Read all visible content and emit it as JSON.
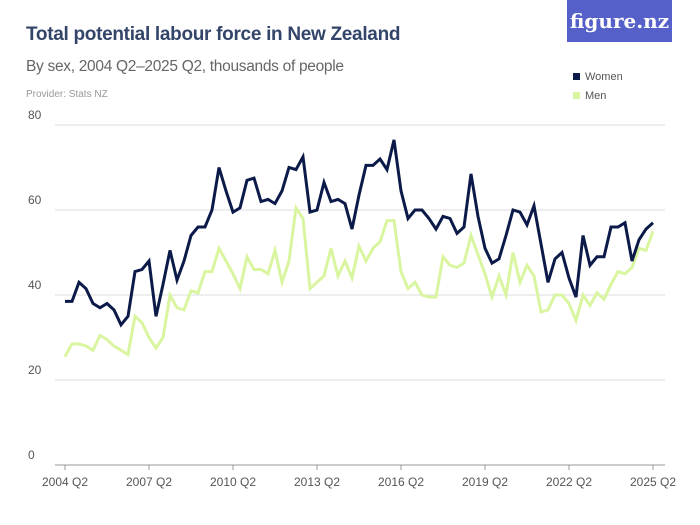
{
  "header": {
    "title": "Total potential labour force in New Zealand",
    "subtitle": "By sex, 2004 Q2–2025 Q2, thousands of people",
    "provider": "Provider: Stats NZ",
    "logo": "figure.nz"
  },
  "colors": {
    "women": "#0b1a48",
    "men": "#d9f5a0",
    "logo_bg": "#5561c8"
  },
  "chart_data": {
    "type": "line",
    "title": "Total potential labour force in New Zealand",
    "subtitle": "By sex, 2004 Q2–2025 Q2, thousands of people",
    "x_start": "2004 Q2",
    "x_end": "2025 Q2",
    "x_ticks": [
      "2004 Q2",
      "2007 Q2",
      "2010 Q2",
      "2013 Q2",
      "2016 Q2",
      "2019 Q2",
      "2022 Q2",
      "2025 Q2"
    ],
    "y_ticks": [
      0,
      20,
      40,
      60,
      80
    ],
    "ylim": [
      0,
      80
    ],
    "grid": true,
    "legend_placement": "top-right",
    "series": [
      {
        "name": "Women",
        "color": "#0b1a48",
        "values": [
          38.5,
          38.5,
          43,
          41.5,
          38,
          37,
          38,
          36.5,
          33,
          35,
          45.5,
          46,
          48,
          35,
          42.5,
          50.5,
          43.5,
          48,
          54,
          56,
          56,
          60,
          70,
          64.5,
          59.5,
          60.5,
          67,
          67.5,
          62,
          62.5,
          61.5,
          64.5,
          70,
          69.5,
          72.5,
          59.5,
          60,
          66.5,
          62,
          62.5,
          61.5,
          55.5,
          63.5,
          70.5,
          70.5,
          72,
          69.5,
          76.5,
          64.5,
          58,
          60,
          60,
          58,
          55.5,
          58.5,
          58,
          54.5,
          56,
          68.5,
          58.5,
          51,
          47.5,
          48.5,
          54,
          60,
          59.5,
          56.5,
          61,
          52,
          43,
          48.5,
          50,
          44,
          39.5,
          54,
          47,
          49,
          49,
          56,
          56,
          57,
          48,
          53,
          55.5,
          57
        ]
      },
      {
        "name": "Men",
        "color": "#d9f5a0",
        "values": [
          25.5,
          28.5,
          28.5,
          28,
          27,
          30.5,
          29.5,
          28,
          27,
          26,
          35,
          33.5,
          30,
          27.5,
          30,
          40,
          37,
          36.5,
          41,
          40.5,
          45.5,
          45.5,
          51,
          48,
          45,
          41.5,
          49,
          46,
          46,
          45,
          50.5,
          43,
          48,
          60.5,
          58,
          41.5,
          43,
          44.5,
          51,
          44.5,
          48,
          44,
          51.5,
          48,
          51,
          52.5,
          57.5,
          57.5,
          45.5,
          41.5,
          43,
          40,
          39.5,
          39.5,
          49,
          47,
          46.5,
          47.5,
          54,
          49.5,
          45,
          39.5,
          44.5,
          40,
          50,
          43,
          47,
          44.5,
          36,
          36.5,
          40,
          40,
          38,
          34,
          40,
          37.5,
          40.5,
          39,
          42.5,
          45.5,
          45,
          46.5,
          51,
          50.5,
          55
        ]
      }
    ]
  }
}
